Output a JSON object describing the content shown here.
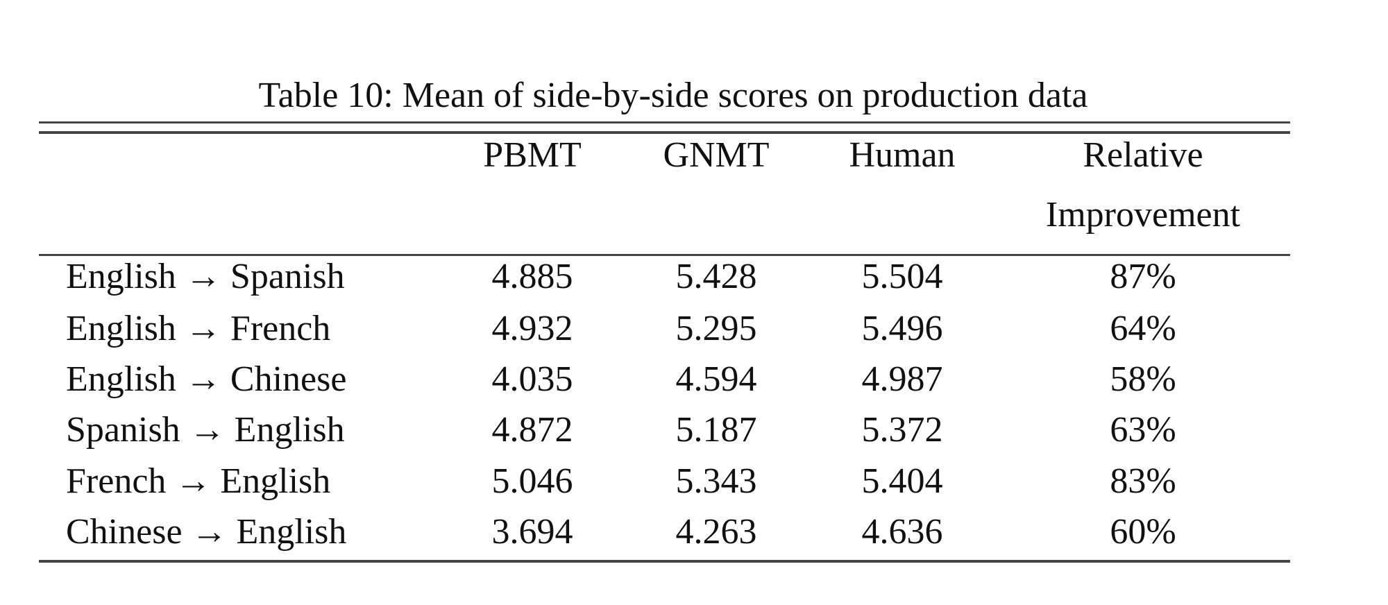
{
  "table": {
    "title": "Table 10: Mean of side-by-side scores on production data",
    "columns": [
      "PBMT",
      "GNMT",
      "Human",
      "Relative Improvement"
    ],
    "rows": [
      [
        "English → Spanish",
        "4.885",
        "5.428",
        "5.504",
        "87%"
      ],
      [
        "English → French",
        "4.932",
        "5.295",
        "5.496",
        "64%"
      ],
      [
        "English → Chinese",
        "4.035",
        "4.594",
        "4.987",
        "58%"
      ],
      [
        "Spanish → English",
        "4.872",
        "5.187",
        "5.372",
        "63%"
      ],
      [
        "French → English",
        "5.046",
        "5.343",
        "5.404",
        "83%"
      ],
      [
        "Chinese → English",
        "3.694",
        "4.263",
        "4.636",
        "60%"
      ]
    ]
  }
}
